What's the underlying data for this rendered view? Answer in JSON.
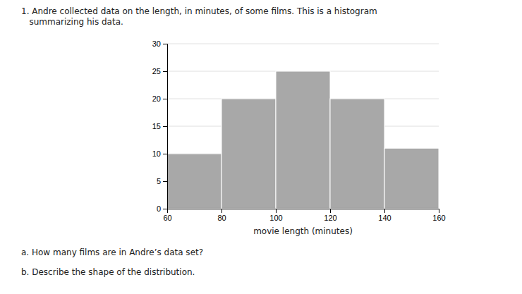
{
  "chart_data": {
    "type": "histogram",
    "title": "1. Andre collected data on the length, in minutes, of some films. This is a histogram\n   summarizing his data.",
    "x_label": "movie length (minutes)",
    "bins": [
      60,
      80,
      100,
      120,
      140,
      160
    ],
    "values": [
      10,
      20,
      25,
      20,
      11
    ],
    "color": "#a8a8a8",
    "xlim": [
      60,
      160
    ],
    "xticks": [
      60,
      80,
      100,
      120,
      140,
      160
    ],
    "ylim": [
      0,
      30
    ],
    "yticks": [
      0,
      5,
      10,
      15,
      20,
      25,
      30
    ],
    "grid": true,
    "annotations": [
      "a. How many films are in Andre’s data set?",
      "b. Describe the shape of the distribution."
    ]
  }
}
